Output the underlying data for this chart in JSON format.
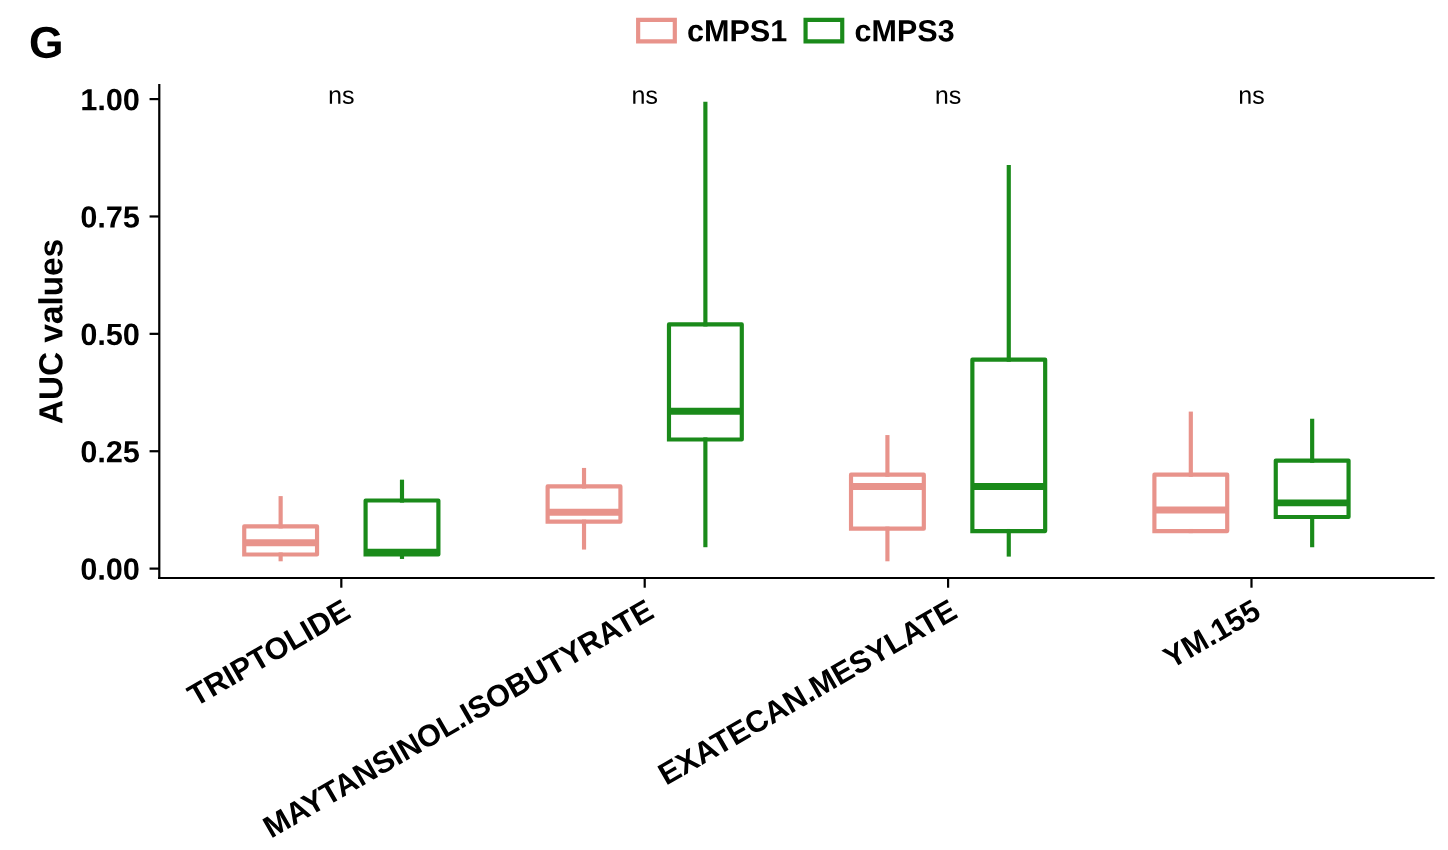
{
  "chart_data": {
    "type": "box",
    "ylabel": "AUC values",
    "categories": [
      "TRIPTOLIDE",
      "MAYTANSINOL.ISOBUTYRATE",
      "EXATECAN.MESYLATE",
      "YM.155"
    ],
    "ylim": [
      -0.02,
      1.03
    ],
    "yticks": [
      {
        "value": 0,
        "label": "0.00"
      },
      {
        "value": 0.25,
        "label": "0.25"
      },
      {
        "value": 0.5,
        "label": "0.50"
      },
      {
        "value": 0.75,
        "label": "0.75"
      },
      {
        "value": 1,
        "label": "1.00"
      }
    ],
    "grid": false,
    "legend": "top",
    "series": [
      {
        "name": "cMPS1",
        "color": "#e8938b",
        "boxes": [
          {
            "low": 0.02,
            "q1": 0.03,
            "median": 0.055,
            "q3": 0.09,
            "high": 0.15
          },
          {
            "low": 0.045,
            "q1": 0.1,
            "median": 0.12,
            "q3": 0.175,
            "high": 0.21
          },
          {
            "low": 0.02,
            "q1": 0.085,
            "median": 0.175,
            "q3": 0.2,
            "high": 0.28
          },
          {
            "low": 0.08,
            "q1": 0.08,
            "median": 0.125,
            "q3": 0.2,
            "high": 0.33
          }
        ]
      },
      {
        "name": "cMPS3",
        "color": "#1a8a1a",
        "boxes": [
          {
            "low": 0.025,
            "q1": 0.03,
            "median": 0.035,
            "q3": 0.145,
            "high": 0.185
          },
          {
            "low": 0.05,
            "q1": 0.275,
            "median": 0.335,
            "q3": 0.52,
            "high": 0.99
          },
          {
            "low": 0.03,
            "q1": 0.08,
            "median": 0.175,
            "q3": 0.445,
            "high": 0.855
          },
          {
            "low": 0.05,
            "q1": 0.11,
            "median": 0.14,
            "q3": 0.23,
            "high": 0.315
          }
        ]
      }
    ],
    "annotations": [
      "G",
      "ns",
      "ns",
      "ns",
      "ns"
    ]
  }
}
